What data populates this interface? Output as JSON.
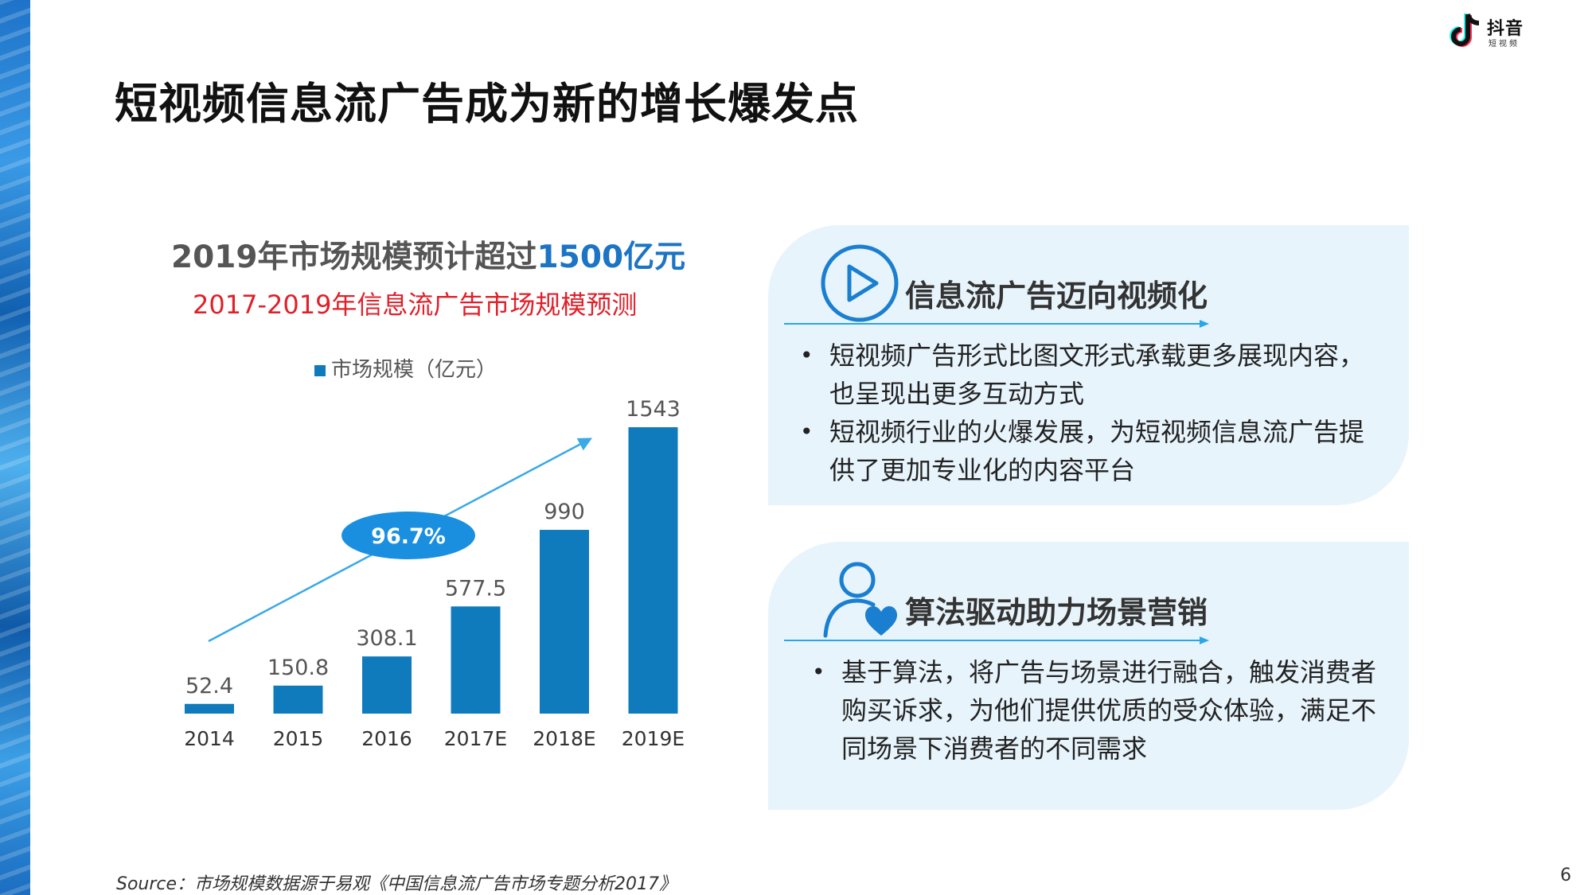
{
  "slide": {
    "title": "短视频信息流广告成为新的增长爆发点",
    "page_number": "6",
    "source": "Source：市场规模数据源于易观《中国信息流广告市场专题分析2017》"
  },
  "logo": {
    "brand": "抖音",
    "sub": "短视频",
    "icon": "tiktok-note-icon"
  },
  "chart_headline": {
    "prefix": "2019年市场规模预计超过",
    "highlight": "1500亿元"
  },
  "chart_data": {
    "type": "bar",
    "title": "2017-2019年信息流广告市场规模预测",
    "legend": "市场规模（亿元）",
    "legend_position": "top",
    "categories": [
      "2014",
      "2015",
      "2016",
      "2017E",
      "2018E",
      "2019E"
    ],
    "values": [
      52.4,
      150.8,
      308.1,
      577.5,
      990,
      1543
    ],
    "value_labels": [
      "52.4",
      "150.8",
      "308.1",
      "577.5",
      "990",
      "1543"
    ],
    "annotation": "96.7%",
    "ylim": [
      0,
      1543
    ],
    "grid": false,
    "bar_color": "#0f7bbd",
    "arrow_color": "#3aa9e6"
  },
  "panels": [
    {
      "title": "信息流广告迈向视频化",
      "icon": "play-circle-icon",
      "bullets": [
        "短视频广告形式比图文形式承载更多展现内容，也呈现出更多互动方式",
        "短视频行业的火爆发展，为短视频信息流广告提供了更加专业化的内容平台"
      ]
    },
    {
      "title": "算法驱动助力场景营销",
      "icon": "user-heart-icon",
      "bullets": [
        "基于算法，将广告与场景进行融合，触发消费者购买诉求，为他们提供优质的受众体验，满足不同场景下消费者的不同需求"
      ]
    }
  ],
  "colors": {
    "accent_blue": "#1b74c4",
    "accent_red": "#e0202a",
    "panel_bg": "#e8f4fc",
    "line_blue": "#3aa9e6"
  }
}
